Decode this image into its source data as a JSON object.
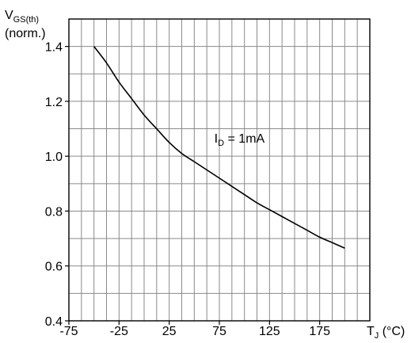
{
  "chart_data": {
    "type": "line",
    "ylabel": {
      "main": "V",
      "sub": "GS(th)",
      "line2": "(norm.)"
    },
    "xlabel": {
      "main": "T",
      "sub": "J",
      "unit": " (°C)"
    },
    "xlim": [
      -75,
      225
    ],
    "ylim": [
      0.4,
      1.5
    ],
    "x_ticks": [
      -75,
      -25,
      25,
      75,
      125,
      175
    ],
    "x_tick_labels": [
      "-75",
      "-25",
      "25",
      "75",
      "125",
      "175"
    ],
    "y_ticks": [
      0.4,
      0.6,
      0.8,
      1.0,
      1.2,
      1.4
    ],
    "y_tick_labels": [
      "0.4",
      "0.6",
      "0.8",
      "1.0",
      "1.2",
      "1.4"
    ],
    "x_grid_step": 12.5,
    "y_grid_step": 0.1,
    "grid": true,
    "annotation": {
      "main": "I",
      "sub": "D",
      "rest": " = 1mA",
      "x": 70,
      "y": 1.05
    },
    "series": [
      {
        "x": [
          -50,
          -37.5,
          -25,
          -12.5,
          0,
          12.5,
          25,
          37.5,
          50,
          62.5,
          75,
          87.5,
          100,
          112.5,
          125,
          137.5,
          150,
          162.5,
          175,
          187.5,
          200
        ],
        "y": [
          1.4,
          1.34,
          1.27,
          1.21,
          1.15,
          1.1,
          1.05,
          1.01,
          0.98,
          0.95,
          0.92,
          0.89,
          0.86,
          0.83,
          0.805,
          0.78,
          0.755,
          0.73,
          0.705,
          0.685,
          0.665
        ],
        "color": "#000000"
      }
    ]
  }
}
